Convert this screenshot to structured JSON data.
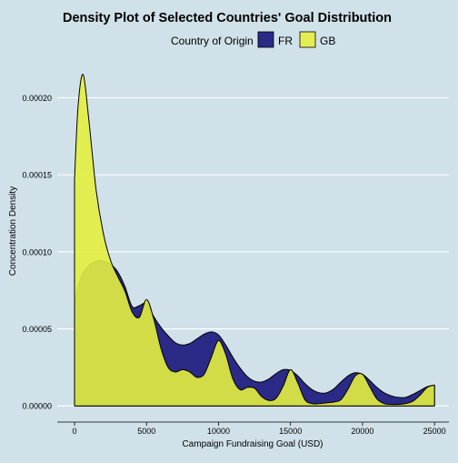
{
  "chart_data": {
    "type": "area",
    "title": "Density Plot of Selected Countries' Goal Distribution",
    "xlabel": "Campaign Fundraising Goal (USD)",
    "ylabel": "Concentration Density",
    "xlim": [
      -1200,
      26000
    ],
    "ylim": [
      -1.05e-05,
      0.000228
    ],
    "x_ticks": [
      0,
      5000,
      10000,
      15000,
      20000,
      25000
    ],
    "x_tick_labels": [
      "0",
      "5000",
      "10000",
      "15000",
      "20000",
      "25000"
    ],
    "y_ticks": [
      0,
      5e-05,
      0.0001,
      0.00015,
      0.0002
    ],
    "y_tick_labels": [
      "0.00000",
      "0.00005",
      "0.00010",
      "0.00015",
      "0.00020"
    ],
    "grid": "horizontal major lines",
    "legend": {
      "title": "Country of Origin",
      "position": "top",
      "entries": [
        "FR",
        "GB"
      ]
    },
    "colors": {
      "background": "#d0e1e9",
      "grid": "#ffffff",
      "FR": "#2b2a86",
      "GB": "#e3ef3f",
      "outline": "#000000"
    },
    "x": [
      0,
      250,
      600,
      1000,
      1500,
      2000,
      2500,
      3000,
      3500,
      4000,
      4500,
      5000,
      5500,
      6000,
      6500,
      7000,
      7500,
      8000,
      8500,
      9000,
      9500,
      10000,
      10500,
      11000,
      11500,
      12000,
      12500,
      13000,
      13500,
      14000,
      14500,
      15000,
      15500,
      16000,
      16500,
      17000,
      17500,
      18000,
      18500,
      19000,
      19500,
      20000,
      20500,
      21000,
      21500,
      22000,
      22500,
      23000,
      23500,
      24000,
      24500,
      25000
    ],
    "series": [
      {
        "name": "FR",
        "values": [
          6.65e-05,
          7.8e-05,
          8.65e-05,
          9.1e-05,
          9.4e-05,
          9.4e-05,
          9.2e-05,
          8.7e-05,
          7.75e-05,
          6.45e-05,
          6.5e-05,
          6.65e-05,
          5.8e-05,
          5.1e-05,
          4.55e-05,
          4.1e-05,
          3.95e-05,
          4.05e-05,
          4.35e-05,
          4.65e-05,
          4.8e-05,
          4.6e-05,
          3.95e-05,
          3.15e-05,
          2.45e-05,
          1.9e-05,
          1.6e-05,
          1.55e-05,
          1.75e-05,
          2.1e-05,
          2.35e-05,
          2.3e-05,
          1.95e-05,
          1.45e-05,
          1.05e-05,
          8.5e-06,
          8.5e-06,
          1.1e-05,
          1.55e-05,
          1.95e-05,
          2.15e-05,
          2.05e-05,
          1.65e-05,
          1.2e-05,
          8.5e-06,
          6.5e-06,
          5.5e-06,
          5.5e-06,
          7.5e-06,
          1e-05,
          1.25e-05,
          1.35e-05
        ]
      },
      {
        "name": "GB",
        "values": [
          0.000147,
          0.000195,
          0.000215,
          0.000185,
          0.00014,
          0.000112,
          9.45e-05,
          8.4e-05,
          7.45e-05,
          6.1e-05,
          5.75e-05,
          6.9e-05,
          5.65e-05,
          3.75e-05,
          2.5e-05,
          2.2e-05,
          2.35e-05,
          2.2e-05,
          1.85e-05,
          2.05e-05,
          3.15e-05,
          4.25e-05,
          3.35e-05,
          1.75e-05,
          1.05e-05,
          1.2e-05,
          1.15e-05,
          6e-06,
          3.5e-06,
          5e-06,
          1.3e-05,
          2.35e-05,
          1.5e-05,
          4e-06,
          1.5e-06,
          1.5e-06,
          2e-06,
          2.5e-06,
          4e-06,
          1.1e-05,
          1.95e-05,
          2.05e-05,
          1.25e-05,
          4.5e-06,
          1.5e-06,
          1e-06,
          1e-06,
          1.5e-06,
          3e-06,
          7e-06,
          1.2e-05,
          1.35e-05
        ]
      }
    ]
  }
}
